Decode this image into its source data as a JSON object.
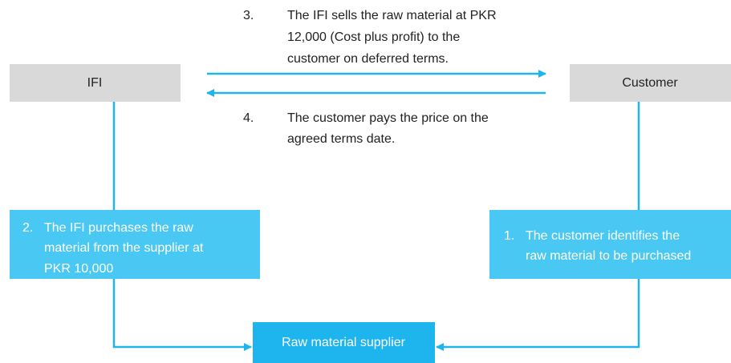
{
  "nodes": [
    {
      "label": "IFI"
    },
    {
      "label": "Customer"
    },
    {
      "label": "Raw material supplier"
    }
  ],
  "steps": [
    {
      "number": "1.",
      "lines": [
        "The customer identifies the",
        "raw material to be purchased"
      ]
    },
    {
      "number": "2.",
      "lines": [
        "The IFI purchases the raw",
        "material from the supplier at",
        "PKR 10,000"
      ]
    },
    {
      "number": "3.",
      "lines": [
        "The IFI sells the raw material at PKR",
        "12,000 (Cost plus profit) to the",
        "customer on deferred terms."
      ]
    },
    {
      "number": "4.",
      "lines": [
        "The customer pays the price on the",
        "agreed terms date."
      ]
    }
  ]
}
